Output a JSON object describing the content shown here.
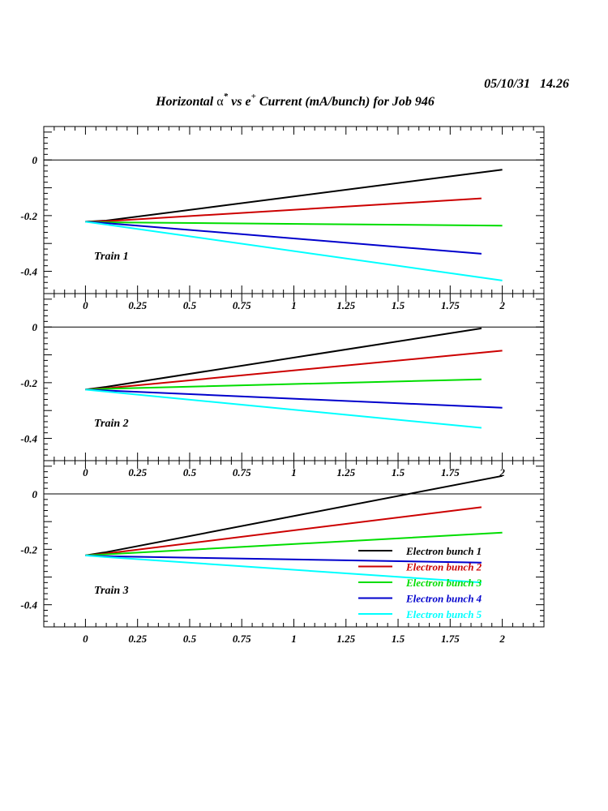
{
  "header": {
    "date_time": "05/10/31   14.26",
    "title_prefix": "Horizontal ",
    "title_alpha": "α",
    "title_star": "*",
    "title_mid": " vs e",
    "title_plus": "+",
    "title_suffix": " Current (mA/bunch) for Job 946"
  },
  "colors": {
    "series": [
      "#000000",
      "#cc0000",
      "#00dd00",
      "#0000cc",
      "#00ffff"
    ],
    "axis": "#000000"
  },
  "chart_data": [
    {
      "type": "line",
      "panel_label": "Train 1",
      "xlim": [
        -0.2,
        2.2
      ],
      "ylim": [
        -0.48,
        0.12
      ],
      "x_ticks": [
        0,
        0.25,
        0.5,
        0.75,
        1,
        1.25,
        1.5,
        1.75,
        2
      ],
      "x_tick_labels": [
        "0",
        "0.25",
        "0.5",
        "0.75",
        "1",
        "1.25",
        "1.5",
        "1.75",
        "2"
      ],
      "y_ticks": [
        0,
        -0.2,
        -0.4
      ],
      "y_tick_labels": [
        "0",
        "-0.2",
        "-0.4"
      ],
      "zero_line": true,
      "series": [
        {
          "x": [
            0,
            0.1,
            2
          ],
          "y": [
            -0.222,
            -0.218,
            -0.035
          ]
        },
        {
          "x": [
            0,
            0.1,
            1.9
          ],
          "y": [
            -0.222,
            -0.22,
            -0.138
          ]
        },
        {
          "x": [
            0,
            0.1,
            2
          ],
          "y": [
            -0.222,
            -0.224,
            -0.236
          ]
        },
        {
          "x": [
            0,
            0.1,
            1.9
          ],
          "y": [
            -0.222,
            -0.227,
            -0.337
          ]
        },
        {
          "x": [
            0,
            0.1,
            2
          ],
          "y": [
            -0.222,
            -0.232,
            -0.433
          ]
        }
      ]
    },
    {
      "type": "line",
      "panel_label": "Train 2",
      "xlim": [
        -0.2,
        2.2
      ],
      "ylim": [
        -0.48,
        0.12
      ],
      "x_ticks": [
        0,
        0.25,
        0.5,
        0.75,
        1,
        1.25,
        1.5,
        1.75,
        2
      ],
      "x_tick_labels": [
        "0",
        "0.25",
        "0.5",
        "0.75",
        "1",
        "1.25",
        "1.5",
        "1.75",
        "2"
      ],
      "y_ticks": [
        0,
        -0.2,
        -0.4
      ],
      "y_tick_labels": [
        "0",
        "-0.2",
        "-0.4"
      ],
      "zero_line": true,
      "series": [
        {
          "x": [
            0,
            0.1,
            1.9
          ],
          "y": [
            -0.225,
            -0.215,
            -0.005
          ]
        },
        {
          "x": [
            0,
            0.1,
            2
          ],
          "y": [
            -0.225,
            -0.22,
            -0.085
          ]
        },
        {
          "x": [
            0,
            0.1,
            1.9
          ],
          "y": [
            -0.225,
            -0.222,
            -0.188
          ]
        },
        {
          "x": [
            0,
            0.1,
            2
          ],
          "y": [
            -0.225,
            -0.228,
            -0.29
          ]
        },
        {
          "x": [
            0,
            0.1,
            1.9
          ],
          "y": [
            -0.225,
            -0.232,
            -0.362
          ]
        }
      ]
    },
    {
      "type": "line",
      "panel_label": "Train 3",
      "xlim": [
        -0.2,
        2.2
      ],
      "ylim": [
        -0.48,
        0.12
      ],
      "x_ticks": [
        0,
        0.25,
        0.5,
        0.75,
        1,
        1.25,
        1.5,
        1.75,
        2
      ],
      "x_tick_labels": [
        "0",
        "0.25",
        "0.5",
        "0.75",
        "1",
        "1.25",
        "1.5",
        "1.75",
        "2"
      ],
      "y_ticks": [
        0,
        -0.2,
        -0.4
      ],
      "y_tick_labels": [
        "0",
        "-0.2",
        "-0.4"
      ],
      "zero_line": true,
      "series": [
        {
          "x": [
            0,
            0.1,
            2
          ],
          "y": [
            -0.222,
            -0.21,
            0.065
          ]
        },
        {
          "x": [
            0,
            0.1,
            1.9
          ],
          "y": [
            -0.222,
            -0.215,
            -0.048
          ]
        },
        {
          "x": [
            0,
            0.1,
            2
          ],
          "y": [
            -0.222,
            -0.218,
            -0.14
          ]
        },
        {
          "x": [
            0,
            0.1,
            1.9
          ],
          "y": [
            -0.222,
            -0.225,
            -0.248
          ]
        },
        {
          "x": [
            0,
            0.1,
            1.9
          ],
          "y": [
            -0.222,
            -0.228,
            -0.32
          ]
        }
      ]
    }
  ],
  "legend": {
    "placement": "lower-right of Train 3 panel",
    "entries": [
      "Electron bunch 1",
      "Electron bunch 2",
      "Electron bunch 3",
      "Electron bunch 4",
      "Electron bunch 5"
    ]
  }
}
